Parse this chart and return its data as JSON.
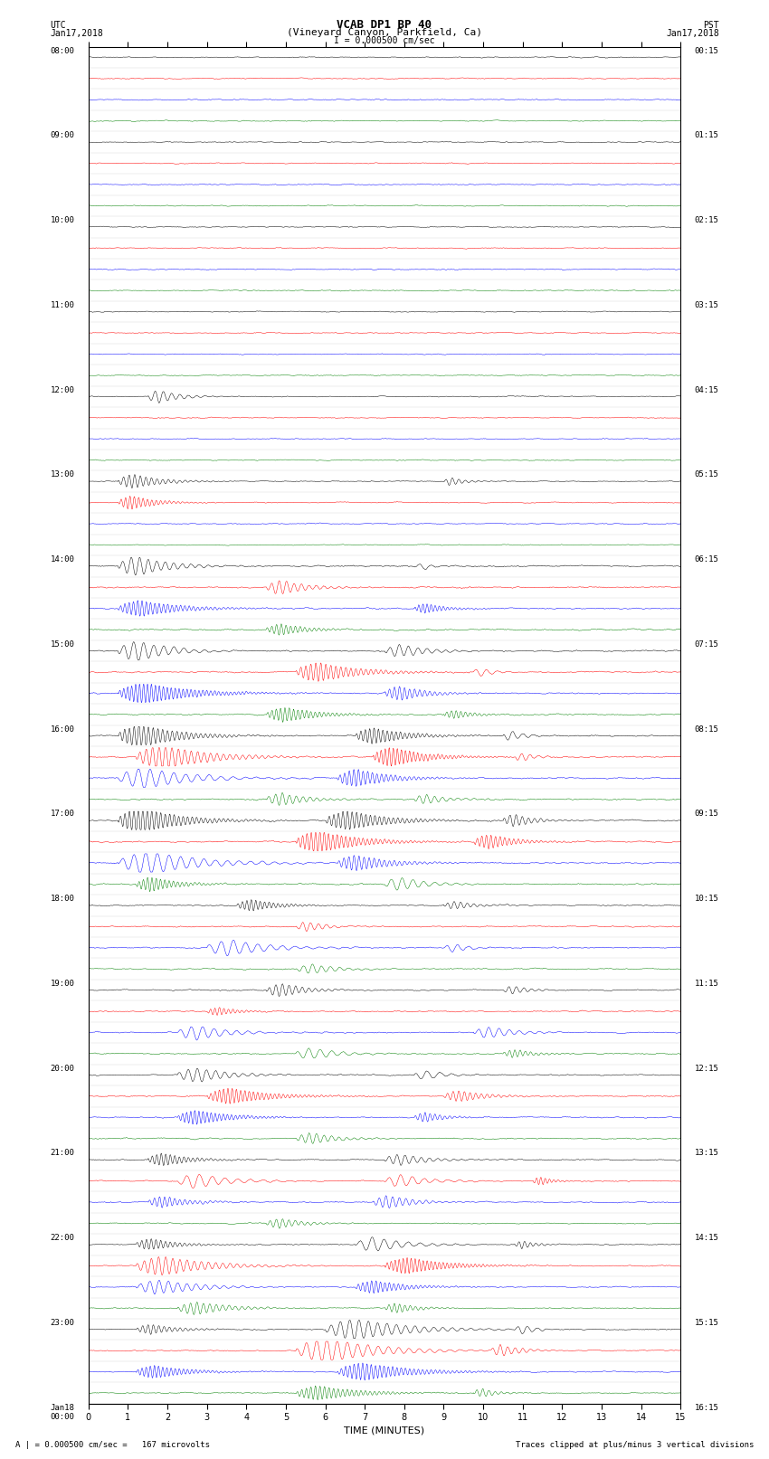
{
  "title_line1": "VCAB DP1 BP 40",
  "title_line2": "(Vineyard Canyon, Parkfield, Ca)",
  "scale_label": "I = 0.000500 cm/sec",
  "left_label_top": "UTC",
  "left_label_date": "Jan17,2018",
  "right_label_top": "PST",
  "right_label_date": "Jan17,2018",
  "xlabel": "TIME (MINUTES)",
  "bottom_left_note": "A | = 0.000500 cm/sec =   167 microvolts",
  "bottom_right_note": "Traces clipped at plus/minus 3 vertical divisions",
  "colors": [
    "black",
    "red",
    "blue",
    "green"
  ],
  "num_rows": 64,
  "background_color": "white",
  "xlim": [
    0,
    15
  ],
  "xticks": [
    0,
    1,
    2,
    3,
    4,
    5,
    6,
    7,
    8,
    9,
    10,
    11,
    12,
    13,
    14,
    15
  ]
}
